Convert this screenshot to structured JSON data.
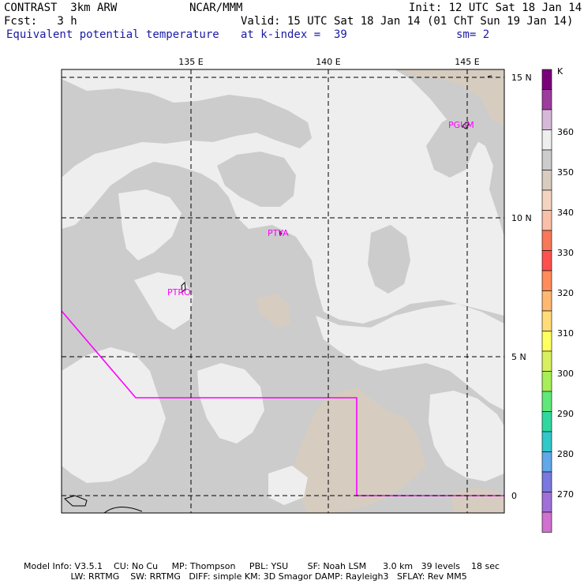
{
  "header": {
    "model": "CONTRAST  3km ARW",
    "org": "NCAR/MMM",
    "init": "Init: 12 UTC Sat 18 Jan 14",
    "fcst": "Fcst:   3 h",
    "valid": "Valid: 15 UTC Sat 18 Jan 14 (01 ChT Sun 19 Jan 14)",
    "field": "Equivalent potential temperature",
    "level": "at k-index =  39",
    "smooth": "sm= 2"
  },
  "map": {
    "lon_labels": [
      "135 E",
      "140 E",
      "145 E"
    ],
    "lat_labels": [
      "15 N",
      "10 N",
      "5 N",
      "0"
    ],
    "stations": [
      "PGUM",
      "PTYA",
      "PTRO"
    ],
    "colors": {
      "frame": "#000000",
      "grid": "#000000",
      "boundary": "#ff00ff",
      "station": "#ff00ff",
      "theta_350": "#cccccc",
      "theta_355": "#eeeeee",
      "theta_345": "#d6ccc0"
    }
  },
  "colorbar": {
    "unit": "K",
    "labels": [
      "360",
      "350",
      "340",
      "330",
      "320",
      "310",
      "300",
      "290",
      "280",
      "270"
    ],
    "colors": [
      "#7a007a",
      "#9e3c9e",
      "#d8b8d8",
      "#eeeeee",
      "#cccccc",
      "#d8ccc0",
      "#f4d4c0",
      "#f8c0a8",
      "#f87858",
      "#ff5050",
      "#ff8c5a",
      "#ffb870",
      "#ffdc78",
      "#ffff60",
      "#d8f060",
      "#a8ee58",
      "#60e878",
      "#30d8a0",
      "#30c8c8",
      "#60a8e8",
      "#7878e0",
      "#a070d8",
      "#d070d0"
    ]
  },
  "footer": {
    "line1": "Model Info: V3.5.1    CU: No Cu     MP: Thompson     PBL: YSU       SF: Noah LSM      3.0 km   39 levels    18 sec",
    "line2": "                 LW: RRTMG    SW: RRTMG   DIFF: simple KM: 3D Smagor DAMP: Rayleigh3   SFLAY: Rev MM5"
  }
}
